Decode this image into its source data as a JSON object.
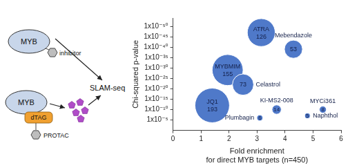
{
  "diagram": {
    "top_row": {
      "protein": "MYB",
      "ligand": "inhibitor"
    },
    "bottom_row": {
      "protein": "MYB",
      "tag": "dTAG",
      "ligand": "PROTAC"
    },
    "readout": "SLAM-seq"
  },
  "chart_data": {
    "type": "bubble",
    "x_label": [
      "Fold enrichment",
      "for direct MYB targets (n=450)"
    ],
    "y_label": "Chi-squared p-value",
    "log": "y",
    "grid": false,
    "data_labels": true,
    "color": "#4f79c9",
    "xlim": [
      0,
      6
    ],
    "xticks": [
      0,
      1,
      2,
      3,
      4,
      5,
      6
    ],
    "ylim": [
      1,
      1e-54
    ],
    "yticks": [
      {
        "value": 1e-05,
        "label": "1x10⁻⁵"
      },
      {
        "value": 1e-10,
        "label": "1x10⁻¹⁰"
      },
      {
        "value": 1e-15,
        "label": "1x10⁻¹⁵"
      },
      {
        "value": 1e-20,
        "label": "1x10⁻²⁰"
      },
      {
        "value": 1e-25,
        "label": "1x10⁻²⁵"
      },
      {
        "value": 1e-30,
        "label": "1x10⁻³⁰"
      },
      {
        "value": 1e-35,
        "label": "1x10⁻³⁵"
      },
      {
        "value": 1e-40,
        "label": "1x10⁻⁴⁰"
      },
      {
        "value": 1e-45,
        "label": "1x10⁻⁴⁵"
      },
      {
        "value": 1e-50,
        "label": "1x10⁻⁵⁰"
      }
    ],
    "point_labels": [
      "ATRA",
      "Mebendazole",
      "MYBMIM",
      "Celastrol",
      "JQ1",
      "KI-MS2-008",
      "MYCi361",
      "Naphthol",
      "Plumbagin"
    ],
    "x": [
      3.15,
      4.3,
      1.95,
      2.5,
      1.4,
      3.7,
      5.35,
      4.8,
      3.1
    ],
    "values": [
      1e-47,
      1e-39,
      1e-29,
      1e-22,
      1e-12,
      1e-10,
      1e-10,
      1e-07,
      1e-06
    ],
    "sizes": [
      126,
      53,
      155,
      73,
      193,
      14,
      8,
      5,
      6
    ]
  }
}
